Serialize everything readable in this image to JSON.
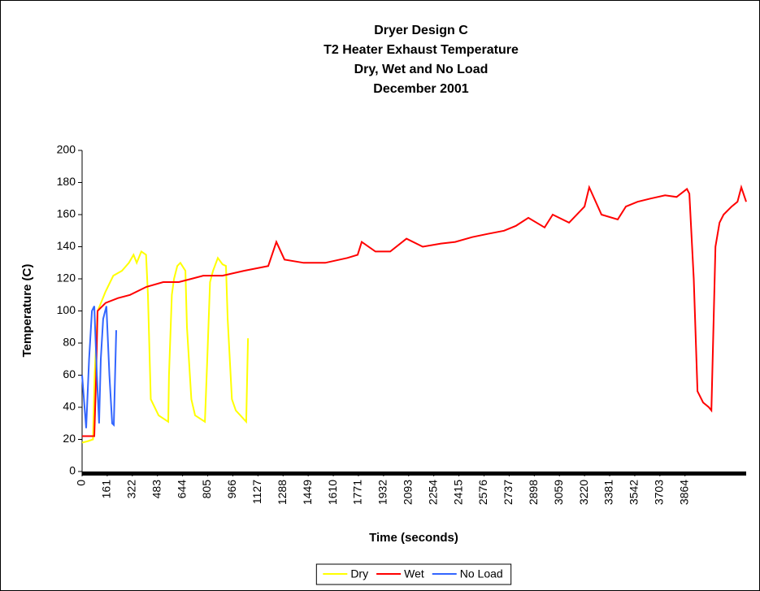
{
  "chart_data": {
    "type": "line",
    "title": [
      "Dryer Design C",
      "T2 Heater Exhaust Temperature",
      "Dry, Wet and No Load",
      "December 2001"
    ],
    "x_label": "Time (seconds)",
    "y_label": "Temperature (C)",
    "xlim": [
      0,
      4256
    ],
    "ylim": [
      0,
      200
    ],
    "yticks": [
      0,
      20,
      40,
      60,
      80,
      100,
      120,
      140,
      160,
      180,
      200
    ],
    "xticks": [
      0,
      161,
      322,
      483,
      644,
      805,
      966,
      1127,
      1288,
      1449,
      1610,
      1771,
      1932,
      2093,
      2254,
      2415,
      2576,
      2737,
      2898,
      3059,
      3220,
      3381,
      3542,
      3703,
      3864
    ],
    "legend": "bottom",
    "grid": false,
    "series": [
      {
        "name": "Dry",
        "color": "#ffff00",
        "x": [
          0,
          40,
          70,
          80,
          100,
          150,
          200,
          255,
          300,
          330,
          350,
          380,
          410,
          422,
          440,
          490,
          552,
          557,
          575,
          589,
          610,
          630,
          662,
          672,
          700,
          724,
          787,
          802,
          820,
          839,
          870,
          900,
          922,
          933,
          960,
          985,
          1052,
          1063
        ],
        "values": [
          18,
          19,
          20,
          60,
          100,
          112,
          122,
          125,
          130,
          135,
          130,
          137,
          135,
          110,
          45,
          35,
          31,
          60,
          110,
          120,
          128,
          130,
          125,
          90,
          45,
          35,
          31,
          70,
          118,
          125,
          133,
          129,
          128,
          95,
          45,
          38,
          31,
          83
        ]
      },
      {
        "name": "Wet",
        "color": "#ff0000",
        "x": [
          0,
          40,
          78,
          90,
          99,
          151,
          230,
          307,
          412,
          520,
          620,
          700,
          776,
          900,
          1037,
          1193,
          1245,
          1297,
          1420,
          1558,
          1700,
          1766,
          1792,
          1880,
          1975,
          2079,
          2183,
          2300,
          2391,
          2500,
          2600,
          2704,
          2780,
          2860,
          2964,
          3016,
          3121,
          3220,
          3250,
          3329,
          3433,
          3485,
          3560,
          3642,
          3736,
          3810,
          3876,
          3892,
          3920,
          3944,
          3980,
          4017,
          4033,
          4059,
          4085,
          4111,
          4163,
          4200,
          4225,
          4256
        ],
        "values": [
          22,
          22,
          22,
          60,
          100,
          105,
          108,
          110,
          115,
          118,
          118,
          120,
          122,
          122,
          125,
          128,
          143,
          132,
          130,
          130,
          133,
          135,
          143,
          137,
          137,
          145,
          140,
          142,
          143,
          146,
          148,
          150,
          153,
          158,
          152,
          160,
          155,
          165,
          177,
          160,
          157,
          165,
          168,
          170,
          172,
          171,
          176,
          173,
          120,
          50,
          43,
          40,
          38,
          140,
          155,
          160,
          165,
          168,
          177,
          168
        ]
      },
      {
        "name": "No Load",
        "color": "#3366ff",
        "x": [
          0,
          26,
          45,
          63,
          78,
          95,
          109,
          120,
          135,
          156,
          175,
          193,
          203,
          219
        ],
        "values": [
          60,
          27,
          70,
          100,
          103,
          60,
          30,
          70,
          95,
          103,
          60,
          30,
          29,
          88
        ]
      }
    ]
  }
}
